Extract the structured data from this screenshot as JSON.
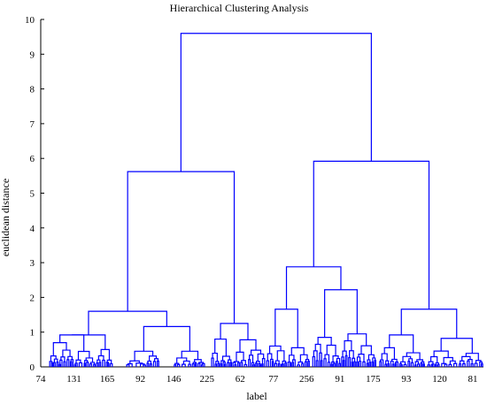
{
  "chart_data": {
    "type": "dendrogram",
    "title": "Hierarchical Clustering Analysis",
    "xlabel": "label",
    "ylabel": "euclidean distance",
    "ylim": [
      0,
      10
    ],
    "yticks": [
      0,
      1,
      2,
      3,
      4,
      5,
      6,
      7,
      8,
      9,
      10
    ],
    "xtick_labels": [
      "74",
      "131",
      "165",
      "92",
      "146",
      "225",
      "62",
      "77",
      "256",
      "91",
      "175",
      "93",
      "120",
      "81"
    ],
    "grid": false,
    "link_color": "#0000ff",
    "merge_heights": {
      "root": 9.6,
      "left_cluster": 5.62,
      "right_cluster": 5.92,
      "left_sub_a": 1.6,
      "left_sub_b": 1.25,
      "right_sub_a": 2.88,
      "right_sub_b": 1.66,
      "right_sub_a_left": 1.66,
      "right_sub_a_right": 2.22
    }
  }
}
